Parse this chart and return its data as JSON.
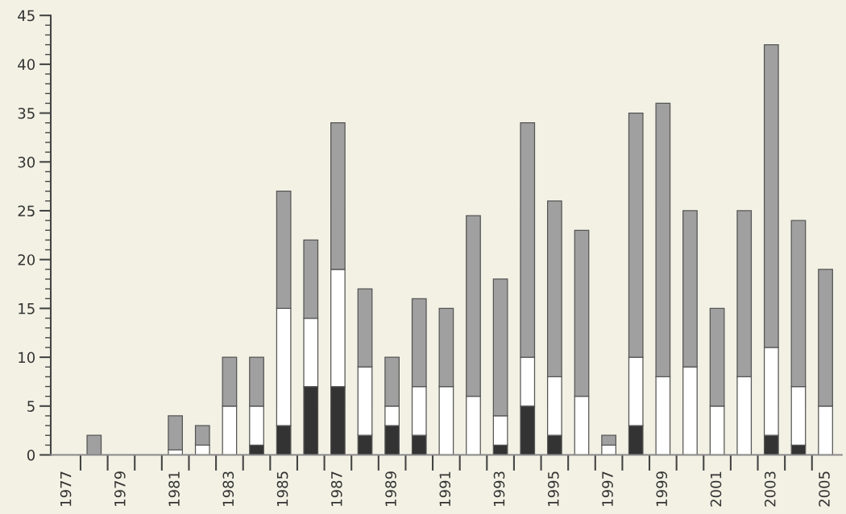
{
  "chart_data": {
    "type": "bar",
    "stacked": true,
    "categories": [
      "1977",
      null,
      "1979",
      null,
      "1981",
      null,
      "1983",
      null,
      "1985",
      null,
      "1987",
      null,
      "1989",
      null,
      "1991",
      null,
      "1993",
      null,
      "1995",
      null,
      "1997",
      null,
      "1999",
      null,
      "2001",
      null,
      "2003",
      null,
      "2005"
    ],
    "series": [
      {
        "color": "#333333",
        "values": [
          0,
          0,
          0,
          0,
          0,
          0,
          0,
          1,
          3,
          7,
          7,
          2,
          3,
          2,
          0,
          0,
          1,
          5,
          2,
          0,
          0,
          3,
          0,
          0,
          0,
          0,
          2,
          1,
          0
        ]
      },
      {
        "color": "#ffffff",
        "values": [
          0,
          0,
          0,
          0,
          0.5,
          1,
          5,
          4,
          12,
          7,
          12,
          7,
          2,
          5,
          7,
          6,
          3,
          5,
          6,
          6,
          1,
          7,
          8,
          9,
          5,
          8,
          9,
          6,
          5
        ]
      },
      {
        "color": "#a0a0a0",
        "values": [
          0,
          2,
          0,
          0,
          3.5,
          2,
          5,
          5,
          12,
          8,
          15,
          8,
          5,
          9,
          8,
          18.5,
          14,
          24,
          18,
          17,
          1,
          25,
          28,
          16,
          10,
          17,
          31,
          17,
          14
        ]
      }
    ],
    "ylim": [
      0,
      45
    ],
    "yticks": [
      0,
      5,
      10,
      15,
      20,
      25,
      30,
      35,
      40,
      45
    ],
    "grid": false
  }
}
